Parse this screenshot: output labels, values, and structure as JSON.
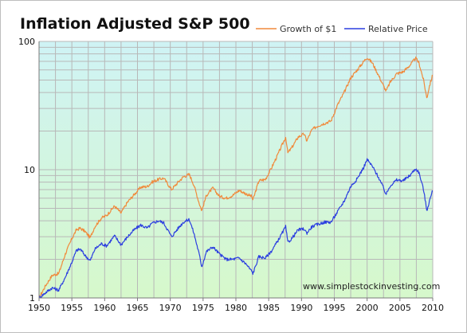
{
  "chart_data": {
    "type": "line",
    "title": "Inflation Adjusted S&P 500",
    "xlabel": "",
    "ylabel": "",
    "yscale": "log",
    "xlim": [
      1950,
      2010
    ],
    "ylim": [
      1,
      100
    ],
    "x_ticks": [
      "1950",
      "1955",
      "1960",
      "1965",
      "1970",
      "1975",
      "1980",
      "1985",
      "1990",
      "1995",
      "2000",
      "2005",
      "2010"
    ],
    "y_ticks": [
      "1",
      "10",
      "100"
    ],
    "grid": true,
    "legend_position": "top-right",
    "annotation": "www.simplestockinvesting.com",
    "colors": {
      "background_top": "#cff3f5",
      "background_bottom": "#d6f8cb",
      "grid": "#b8b8b8"
    },
    "series": [
      {
        "name": "Growth of $1",
        "color": "#f08a3c",
        "points": [
          [
            1950.0,
            1.0
          ],
          [
            1951.0,
            1.25
          ],
          [
            1952.0,
            1.5
          ],
          [
            1953.0,
            1.55
          ],
          [
            1954.0,
            2.2
          ],
          [
            1955.0,
            2.9
          ],
          [
            1955.7,
            3.4
          ],
          [
            1956.3,
            3.5
          ],
          [
            1957.0,
            3.3
          ],
          [
            1957.8,
            2.95
          ],
          [
            1958.5,
            3.6
          ],
          [
            1959.5,
            4.2
          ],
          [
            1960.3,
            4.4
          ],
          [
            1961.5,
            5.2
          ],
          [
            1962.5,
            4.6
          ],
          [
            1963.5,
            5.6
          ],
          [
            1964.5,
            6.4
          ],
          [
            1965.5,
            7.3
          ],
          [
            1966.5,
            7.4
          ],
          [
            1967.2,
            8.0
          ],
          [
            1968.2,
            8.4
          ],
          [
            1969.0,
            8.6
          ],
          [
            1970.2,
            7.0
          ],
          [
            1971.2,
            8.0
          ],
          [
            1972.0,
            8.8
          ],
          [
            1972.9,
            9.2
          ],
          [
            1973.6,
            7.6
          ],
          [
            1974.4,
            5.5
          ],
          [
            1974.8,
            4.8
          ],
          [
            1975.5,
            6.3
          ],
          [
            1976.5,
            7.2
          ],
          [
            1977.5,
            6.2
          ],
          [
            1978.5,
            6.0
          ],
          [
            1979.5,
            6.3
          ],
          [
            1980.5,
            6.9
          ],
          [
            1981.5,
            6.5
          ],
          [
            1982.4,
            6.2
          ],
          [
            1982.6,
            5.8
          ],
          [
            1983.5,
            8.2
          ],
          [
            1984.5,
            8.4
          ],
          [
            1985.5,
            10.5
          ],
          [
            1986.5,
            13.5
          ],
          [
            1987.6,
            18.0
          ],
          [
            1987.9,
            13.5
          ],
          [
            1988.5,
            14.8
          ],
          [
            1989.5,
            18.0
          ],
          [
            1990.4,
            19.0
          ],
          [
            1990.8,
            16.8
          ],
          [
            1991.6,
            20.5
          ],
          [
            1992.5,
            22.0
          ],
          [
            1993.5,
            23.0
          ],
          [
            1994.5,
            24.0
          ],
          [
            1995.5,
            32.0
          ],
          [
            1996.5,
            40.0
          ],
          [
            1997.5,
            52.0
          ],
          [
            1998.5,
            60.0
          ],
          [
            1999.5,
            70.0
          ],
          [
            2000.0,
            75.0
          ],
          [
            2000.8,
            68.0
          ],
          [
            2001.7,
            55.0
          ],
          [
            2002.5,
            45.0
          ],
          [
            2002.9,
            41.0
          ],
          [
            2003.5,
            48.0
          ],
          [
            2004.5,
            56.0
          ],
          [
            2005.5,
            58.0
          ],
          [
            2006.5,
            65.0
          ],
          [
            2007.4,
            74.0
          ],
          [
            2007.9,
            68.0
          ],
          [
            2008.6,
            50.0
          ],
          [
            2009.1,
            36.0
          ],
          [
            2009.5,
            45.0
          ],
          [
            2010.0,
            55.0
          ]
        ]
      },
      {
        "name": "Relative Price",
        "color": "#2b3ee0",
        "points": [
          [
            1950.0,
            1.0
          ],
          [
            1951.0,
            1.1
          ],
          [
            1952.0,
            1.2
          ],
          [
            1953.0,
            1.15
          ],
          [
            1954.0,
            1.45
          ],
          [
            1955.0,
            1.9
          ],
          [
            1955.7,
            2.35
          ],
          [
            1956.3,
            2.4
          ],
          [
            1957.0,
            2.15
          ],
          [
            1957.8,
            1.95
          ],
          [
            1958.5,
            2.4
          ],
          [
            1959.5,
            2.65
          ],
          [
            1960.3,
            2.55
          ],
          [
            1961.5,
            3.05
          ],
          [
            1962.5,
            2.6
          ],
          [
            1963.5,
            3.0
          ],
          [
            1964.5,
            3.4
          ],
          [
            1965.5,
            3.7
          ],
          [
            1966.5,
            3.5
          ],
          [
            1967.2,
            3.8
          ],
          [
            1968.2,
            4.0
          ],
          [
            1969.0,
            3.85
          ],
          [
            1970.2,
            3.0
          ],
          [
            1971.2,
            3.5
          ],
          [
            1972.0,
            3.9
          ],
          [
            1972.9,
            4.1
          ],
          [
            1973.6,
            3.2
          ],
          [
            1974.4,
            2.2
          ],
          [
            1974.8,
            1.75
          ],
          [
            1975.5,
            2.3
          ],
          [
            1976.5,
            2.5
          ],
          [
            1977.5,
            2.2
          ],
          [
            1978.5,
            2.0
          ],
          [
            1979.5,
            2.0
          ],
          [
            1980.5,
            2.05
          ],
          [
            1981.5,
            1.85
          ],
          [
            1982.4,
            1.62
          ],
          [
            1982.6,
            1.55
          ],
          [
            1983.5,
            2.1
          ],
          [
            1984.5,
            2.05
          ],
          [
            1985.5,
            2.35
          ],
          [
            1986.5,
            2.85
          ],
          [
            1987.6,
            3.6
          ],
          [
            1987.9,
            2.7
          ],
          [
            1988.5,
            2.9
          ],
          [
            1989.5,
            3.4
          ],
          [
            1990.4,
            3.45
          ],
          [
            1990.8,
            3.2
          ],
          [
            1991.6,
            3.6
          ],
          [
            1992.5,
            3.75
          ],
          [
            1993.5,
            3.9
          ],
          [
            1994.5,
            3.9
          ],
          [
            1995.5,
            4.7
          ],
          [
            1996.5,
            5.7
          ],
          [
            1997.5,
            7.4
          ],
          [
            1998.5,
            8.5
          ],
          [
            1999.5,
            10.5
          ],
          [
            2000.0,
            12.0
          ],
          [
            2000.8,
            10.6
          ],
          [
            2001.7,
            8.8
          ],
          [
            2002.5,
            7.2
          ],
          [
            2002.9,
            6.4
          ],
          [
            2003.5,
            7.5
          ],
          [
            2004.5,
            8.3
          ],
          [
            2005.5,
            8.2
          ],
          [
            2006.5,
            9.0
          ],
          [
            2007.4,
            10.2
          ],
          [
            2007.9,
            9.5
          ],
          [
            2008.6,
            7.0
          ],
          [
            2009.1,
            4.8
          ],
          [
            2009.5,
            5.7
          ],
          [
            2010.0,
            6.9
          ]
        ]
      }
    ]
  }
}
